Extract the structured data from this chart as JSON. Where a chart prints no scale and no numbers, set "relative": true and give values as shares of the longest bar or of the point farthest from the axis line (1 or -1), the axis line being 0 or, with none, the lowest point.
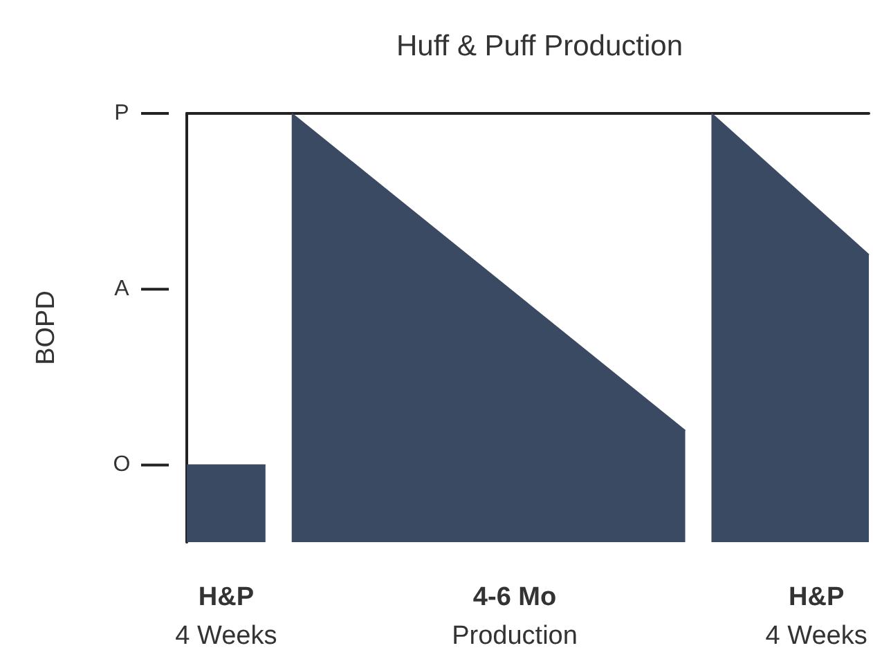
{
  "chart_data": {
    "type": "area",
    "title": "Huff & Puff Production",
    "ylabel": "BOPD",
    "categories": [
      null,
      null,
      null,
      "H&P\n4 Weeks",
      null,
      null,
      null,
      null,
      null,
      null,
      null,
      null,
      null,
      null,
      null,
      null,
      null,
      null,
      null,
      null,
      null,
      null,
      null,
      null,
      null,
      "4-6 Mo\nProduction",
      null,
      null,
      null,
      null,
      null,
      null,
      null,
      null,
      null,
      null,
      null,
      null,
      null,
      null,
      null,
      null,
      null,
      null,
      null,
      null,
      null,
      null,
      "H&P\n4 Weeks",
      null,
      null,
      null,
      null
    ],
    "series": [
      {
        "color": "#3b4a63",
        "values": [
          0.18,
          null,
          null,
          null,
          null,
          null,
          0.18,
          null,
          null,
          null,
          null,
          null,
          null,
          null,
          null,
          null,
          null,
          null,
          null,
          null,
          null,
          null,
          null,
          null,
          null,
          null,
          null,
          null,
          null,
          null,
          null,
          null,
          null,
          null,
          null,
          null,
          null,
          null,
          null,
          null,
          null,
          null,
          null,
          null,
          null,
          null,
          null,
          null,
          null,
          null,
          null,
          null,
          null
        ]
      },
      {
        "color": "#3b4a63",
        "values": [
          null,
          null,
          null,
          null,
          null,
          null,
          null,
          null,
          1,
          null,
          null,
          null,
          null,
          null,
          null,
          null,
          null,
          null,
          null,
          null,
          null,
          null,
          null,
          null,
          null,
          null,
          null,
          null,
          null,
          null,
          null,
          null,
          null,
          null,
          null,
          null,
          null,
          null,
          0.26,
          null,
          null,
          null,
          null,
          null,
          null,
          null,
          null,
          null,
          null,
          null,
          null,
          null,
          null
        ]
      },
      {
        "color": "#3b4a63",
        "values": [
          null,
          null,
          null,
          null,
          null,
          null,
          null,
          null,
          null,
          null,
          null,
          null,
          null,
          null,
          null,
          null,
          null,
          null,
          null,
          null,
          null,
          null,
          null,
          null,
          null,
          null,
          null,
          null,
          null,
          null,
          null,
          null,
          null,
          null,
          null,
          null,
          null,
          null,
          null,
          null,
          1,
          null,
          null,
          null,
          null,
          null,
          null,
          null,
          null,
          null,
          null,
          null,
          0.67
        ]
      }
    ],
    "relative": true,
    "ref_lines": [
      {
        "axis": "y",
        "value": 0.18,
        "label": "O"
      },
      {
        "axis": "y",
        "value": 0.59,
        "label": "A"
      },
      {
        "axis": "y",
        "value": 1,
        "label": "P"
      }
    ]
  }
}
